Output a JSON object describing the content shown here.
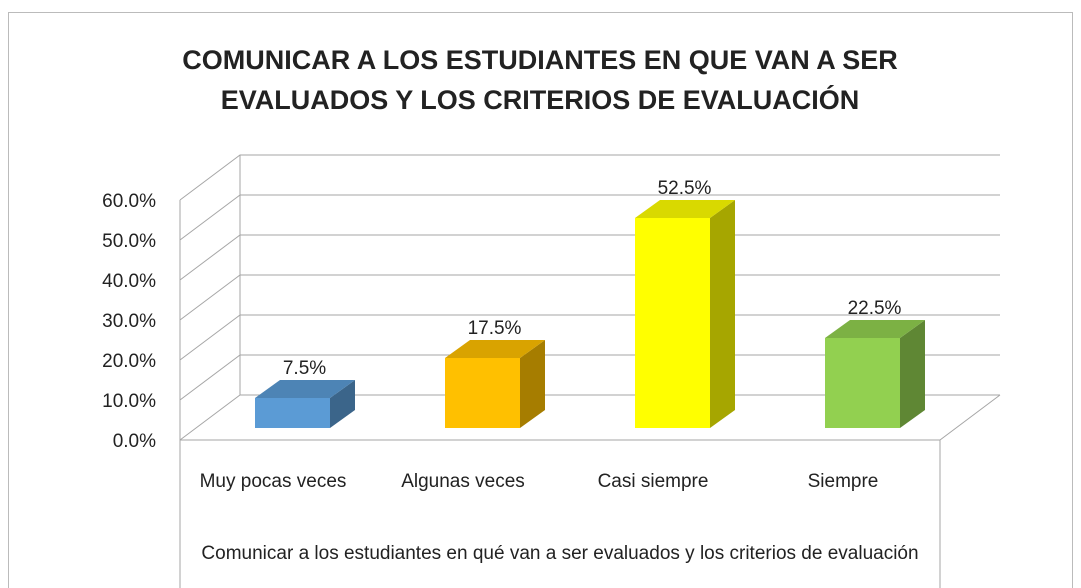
{
  "chart_data": {
    "type": "bar3d",
    "title": "COMUNICAR A LOS ESTUDIANTES EN QUE VAN A SER EVALUADOS Y LOS CRITERIOS DE EVALUACIÓN",
    "x_label": "Comunicar a los estudiantes en qué van a ser evaluados y los criterios de evaluación",
    "categories": [
      "Muy pocas veces",
      "Algunas veces",
      "Casi siempre",
      "Siempre"
    ],
    "values": [
      7.5,
      17.5,
      52.5,
      22.5
    ],
    "value_labels": [
      "7.5%",
      "17.5%",
      "52.5%",
      "22.5%"
    ],
    "colors": [
      "#5b9bd5",
      "#ffc000",
      "#ffff00",
      "#92d050"
    ],
    "ylim": [
      0,
      60
    ],
    "yticks": [
      {
        "value": 0,
        "label": "0.0%"
      },
      {
        "value": 10,
        "label": "10.0%"
      },
      {
        "value": 20,
        "label": "20.0%"
      },
      {
        "value": 30,
        "label": "30.0%"
      },
      {
        "value": 40,
        "label": "40.0%"
      },
      {
        "value": 50,
        "label": "50.0%"
      },
      {
        "value": 60,
        "label": "60.0%"
      }
    ],
    "grid": true
  }
}
